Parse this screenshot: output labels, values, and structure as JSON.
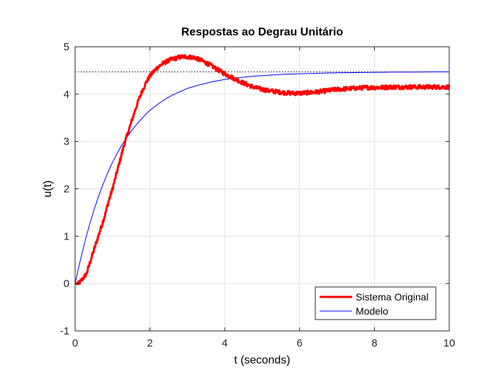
{
  "chart_data": {
    "type": "line",
    "title": "Respostas ao Degrau Unitário",
    "xlabel": "t (seconds)",
    "ylabel": "u(t)",
    "xlim": [
      0,
      10
    ],
    "ylim": [
      -1,
      5
    ],
    "xticks": [
      0,
      2,
      4,
      6,
      8,
      10
    ],
    "yticks": [
      -1,
      0,
      1,
      2,
      3,
      4,
      5
    ],
    "grid": true,
    "legend_position": "bottom-right",
    "reference_line": {
      "y": 4.47,
      "style": "dotted",
      "color": "#000000"
    },
    "series": [
      {
        "name": "Sistema Original",
        "color": "#ff0000",
        "style": "thick-noisy",
        "x": [
          0,
          0.1,
          0.2,
          0.3,
          0.4,
          0.5,
          0.6,
          0.7,
          0.8,
          0.9,
          1.0,
          1.1,
          1.2,
          1.3,
          1.4,
          1.5,
          1.6,
          1.7,
          1.8,
          1.9,
          2.0,
          2.1,
          2.2,
          2.3,
          2.4,
          2.5,
          2.6,
          2.7,
          2.8,
          2.9,
          3.0,
          3.2,
          3.4,
          3.6,
          3.8,
          4.0,
          4.2,
          4.4,
          4.6,
          4.8,
          5.0,
          5.2,
          5.4,
          5.6,
          5.8,
          6.0,
          6.2,
          6.4,
          6.6,
          6.8,
          7.0,
          7.2,
          7.4,
          7.6,
          7.8,
          8.0,
          8.2,
          8.4,
          8.6,
          8.8,
          9.0,
          9.2,
          9.4,
          9.6,
          9.8,
          10.0
        ],
        "values": [
          0.0,
          0.0,
          0.1,
          0.2,
          0.45,
          0.7,
          0.95,
          1.2,
          1.45,
          1.75,
          2.0,
          2.3,
          2.6,
          2.9,
          3.15,
          3.4,
          3.65,
          3.88,
          4.08,
          4.25,
          4.38,
          4.48,
          4.56,
          4.62,
          4.67,
          4.71,
          4.74,
          4.76,
          4.78,
          4.79,
          4.79,
          4.77,
          4.7,
          4.62,
          4.52,
          4.43,
          4.35,
          4.27,
          4.2,
          4.14,
          4.1,
          4.07,
          4.05,
          4.03,
          4.02,
          4.02,
          4.03,
          4.04,
          4.06,
          4.08,
          4.1,
          4.11,
          4.12,
          4.13,
          4.14,
          4.14,
          4.14,
          4.15,
          4.15,
          4.15,
          4.15,
          4.15,
          4.15,
          4.15,
          4.15,
          4.15
        ]
      },
      {
        "name": "Modelo",
        "color": "#0000ff",
        "style": "thin",
        "x": [
          0,
          0.1,
          0.2,
          0.3,
          0.4,
          0.5,
          0.6,
          0.7,
          0.8,
          0.9,
          1.0,
          1.2,
          1.4,
          1.6,
          1.8,
          2.0,
          2.2,
          2.4,
          2.6,
          2.8,
          3.0,
          3.3,
          3.6,
          4.0,
          4.4,
          4.8,
          5.2,
          5.6,
          6.0,
          6.5,
          7.0,
          7.5,
          8.0,
          8.5,
          9.0,
          9.5,
          10.0
        ],
        "values": [
          0.0,
          0.36,
          0.69,
          1.0,
          1.28,
          1.54,
          1.78,
          2.0,
          2.2,
          2.39,
          2.56,
          2.86,
          3.11,
          3.32,
          3.5,
          3.66,
          3.78,
          3.89,
          3.98,
          4.05,
          4.12,
          4.19,
          4.25,
          4.31,
          4.35,
          4.38,
          4.4,
          4.42,
          4.43,
          4.44,
          4.45,
          4.455,
          4.46,
          4.465,
          4.465,
          4.47,
          4.47
        ]
      }
    ]
  }
}
